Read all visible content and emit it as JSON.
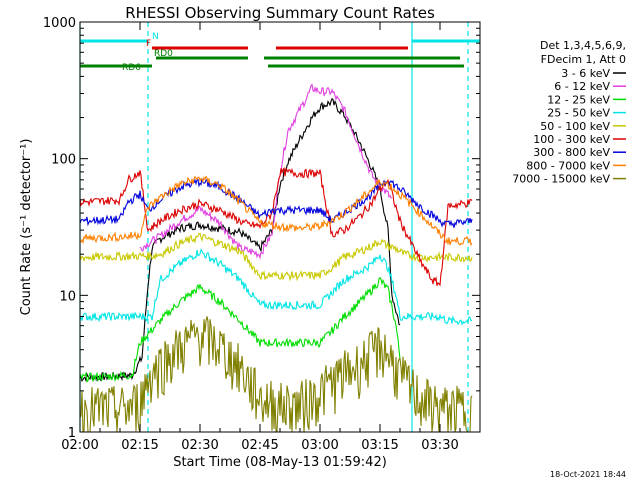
{
  "chart_data": {
    "type": "line",
    "title": "RHESSI Observing Summary Count Rates",
    "xlabel": "Start Time (08-May-13 01:59:42)",
    "ylabel": "Count Rate (s⁻¹ detector⁻¹)",
    "yscale": "log",
    "ylim": [
      1,
      1000
    ],
    "xlim_minutes": [
      0,
      100
    ],
    "x_tick_labels": [
      "02:00",
      "02:15",
      "02:30",
      "02:45",
      "03:00",
      "03:15",
      "03:30"
    ],
    "x_ticks_minutes": [
      0,
      15,
      30,
      45,
      60,
      75,
      90
    ],
    "y_tick_labels": [
      "1",
      "10",
      "100",
      "1000"
    ],
    "y_ticks": [
      1,
      10,
      100,
      1000
    ],
    "legend_header": [
      "Det 1,3,4,5,6,9,",
      "FDecim 1, Att 0"
    ],
    "legend_position": "right",
    "footer_timestamp": "18-Oct-2021 18:44",
    "series": [
      {
        "name": "3 - 6 keV",
        "color": "#000000",
        "x": [
          0,
          13,
          15.5,
          17,
          18,
          20,
          25,
          30,
          35,
          40,
          45,
          48,
          50,
          52,
          55,
          58,
          60,
          63,
          66,
          70,
          73,
          75,
          77,
          78,
          80
        ],
        "y": [
          2.5,
          2.6,
          3.5,
          12,
          22,
          26,
          31,
          33,
          31,
          29,
          22,
          30,
          65,
          95,
          140,
          200,
          240,
          260,
          210,
          130,
          85,
          60,
          30,
          10,
          6
        ]
      },
      {
        "name": "6 - 12 keV",
        "color": "#e040e0",
        "x": [
          15,
          17,
          20,
          25,
          30,
          35,
          38,
          40,
          45,
          48,
          50,
          52,
          55,
          58,
          60,
          63,
          66,
          70,
          73,
          75,
          77,
          78
        ],
        "y": [
          22,
          24,
          27,
          35,
          43,
          34,
          26,
          22,
          20,
          28,
          80,
          160,
          230,
          330,
          310,
          310,
          230,
          120,
          75,
          63,
          55,
          50
        ]
      },
      {
        "name": "12 - 25 keV",
        "color": "#00dd00",
        "x": [
          0,
          13,
          15,
          20,
          25,
          30,
          35,
          40,
          45,
          60,
          63,
          66,
          70,
          73,
          75,
          77,
          79,
          80
        ],
        "y": [
          2.5,
          2.6,
          4.5,
          6.5,
          9.0,
          11.5,
          9.0,
          6.5,
          4.5,
          4.5,
          5.5,
          7.0,
          9.0,
          11.0,
          13.0,
          11.0,
          6.0,
          3.5
        ]
      },
      {
        "name": "25 - 50 keV",
        "color": "#00e5e5",
        "x": [
          0,
          18,
          20,
          25,
          30,
          35,
          40,
          45,
          60,
          63,
          66,
          70,
          73,
          75,
          77,
          79,
          80,
          90,
          92,
          98
        ],
        "y": [
          7.0,
          7.0,
          13.0,
          17.0,
          21.0,
          17.0,
          13.0,
          8.5,
          8.5,
          10.5,
          13.0,
          15.0,
          17.0,
          20.0,
          16.0,
          10.0,
          7.0,
          7.0,
          6.5,
          6.5
        ]
      },
      {
        "name": "50 - 100 keV",
        "color": "#c8c800",
        "x": [
          0,
          18,
          20,
          25,
          30,
          35,
          40,
          45,
          60,
          63,
          66,
          70,
          73,
          75,
          77,
          79,
          81,
          85,
          90,
          98
        ],
        "y": [
          19.0,
          19.5,
          20.0,
          24.0,
          27.0,
          24.0,
          21.0,
          14.0,
          14.0,
          16.0,
          19.0,
          21.0,
          23.0,
          25.0,
          23.0,
          22.0,
          20.0,
          19.0,
          19.0,
          19.0
        ]
      },
      {
        "name": "100 - 300 keV",
        "color": "#dd0000",
        "x": [
          0,
          10,
          12,
          15,
          17,
          20,
          25,
          30,
          35,
          40,
          42,
          45,
          48,
          50,
          55,
          60,
          63,
          66,
          70,
          73,
          75,
          77,
          78,
          80,
          85,
          88,
          90,
          92,
          98
        ],
        "y": [
          48,
          50,
          70,
          80,
          30,
          35,
          42,
          47,
          42,
          35,
          33,
          32,
          40,
          80,
          78,
          78,
          28,
          30,
          38,
          48,
          60,
          70,
          55,
          35,
          18,
          13,
          12,
          45,
          48
        ]
      },
      {
        "name": "300 - 800 keV",
        "color": "#0000dd",
        "x": [
          0,
          10,
          12,
          15,
          17,
          20,
          25,
          30,
          35,
          40,
          45,
          48,
          50,
          55,
          60,
          63,
          66,
          70,
          73,
          75,
          77,
          80,
          85,
          90,
          92,
          98
        ],
        "y": [
          35,
          36,
          48,
          55,
          42,
          50,
          62,
          68,
          62,
          50,
          38,
          42,
          42,
          42,
          42,
          35,
          40,
          48,
          55,
          65,
          70,
          60,
          45,
          35,
          33,
          35
        ]
      },
      {
        "name": "800 - 7000 keV",
        "color": "#ff8000",
        "x": [
          0,
          12,
          15,
          17,
          20,
          25,
          30,
          35,
          40,
          45,
          50,
          55,
          60,
          65,
          70,
          73,
          75,
          77,
          80,
          85,
          90,
          92,
          98
        ],
        "y": [
          26,
          27,
          28,
          44,
          52,
          65,
          72,
          64,
          48,
          34,
          32,
          31,
          32,
          38,
          50,
          60,
          68,
          65,
          55,
          40,
          28,
          25,
          25
        ]
      },
      {
        "name": "7000 - 15000 keV",
        "color": "#808000",
        "x": [
          0,
          12,
          15,
          17,
          20,
          25,
          30,
          35,
          40,
          45,
          50,
          55,
          60,
          65,
          70,
          73,
          75,
          77,
          80,
          85,
          90,
          98
        ],
        "y": [
          1.5,
          1.5,
          1.7,
          2.5,
          3.2,
          4.2,
          5.3,
          4.3,
          3.0,
          1.8,
          1.6,
          1.6,
          2.0,
          2.6,
          3.2,
          3.8,
          4.3,
          3.8,
          2.6,
          1.8,
          1.5,
          1.5
        ]
      }
    ],
    "status_bars": [
      {
        "label": "N",
        "color": "#00e5e5",
        "segments": [
          [
            0,
            17
          ],
          [
            83,
            100
          ]
        ]
      },
      {
        "label": "F",
        "color": "#dd0000",
        "segments": [
          [
            18,
            42
          ],
          [
            49,
            82
          ]
        ]
      },
      {
        "label": "RD0",
        "color": "#008000",
        "segments": [
          [
            19,
            42
          ],
          [
            46,
            95
          ]
        ]
      },
      {
        "label": "RD6",
        "color": "#008000",
        "segments": [
          [
            0,
            18
          ],
          [
            47,
            96
          ]
        ]
      }
    ],
    "vertical_markers": [
      {
        "x": 0,
        "color": "#00e5e5",
        "style": "solid"
      },
      {
        "x": 17,
        "color": "#00e5e5",
        "style": "dashed"
      },
      {
        "x": 83,
        "color": "#00e5e5",
        "style": "solid"
      },
      {
        "x": 97,
        "color": "#00e5e5",
        "style": "dashed"
      }
    ]
  }
}
